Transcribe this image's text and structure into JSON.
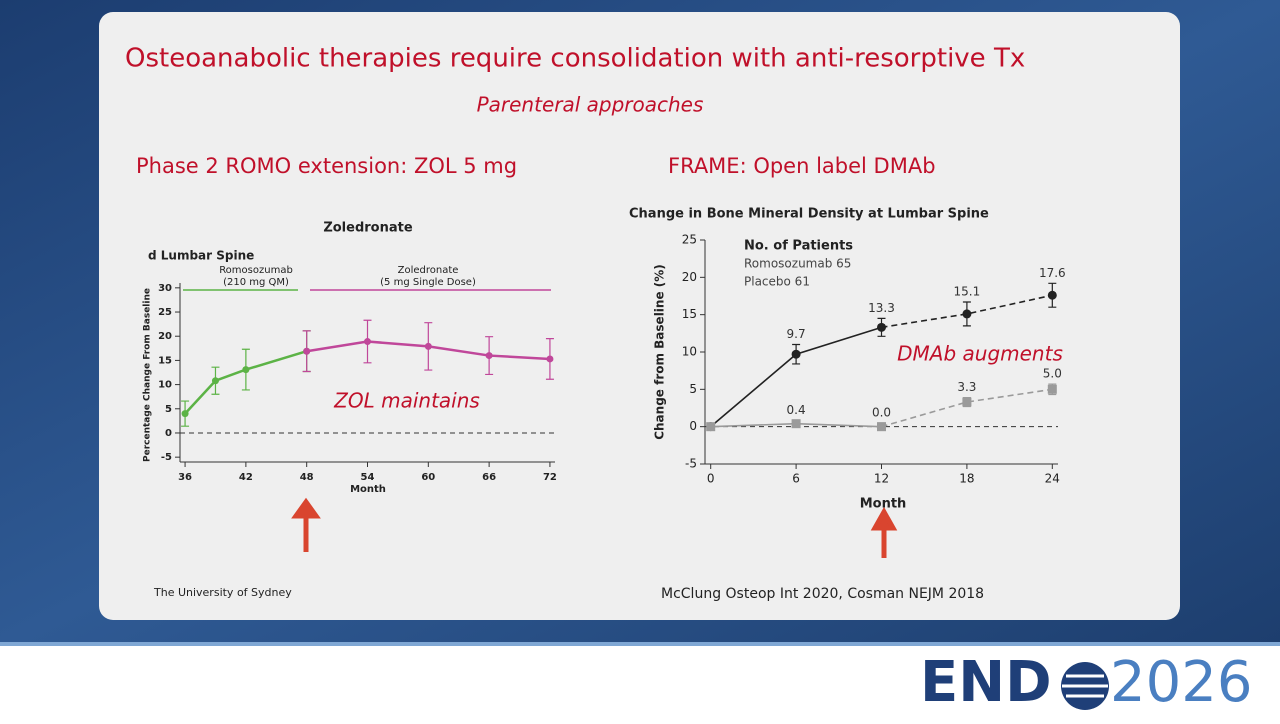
{
  "slide": {
    "title": "Osteoanabolic therapies require consolidation with anti-resorptive Tx",
    "subtitle": "Parenteral approaches",
    "left_heading": "Phase 2 ROMO extension: ZOL 5 mg",
    "right_heading": "FRAME: Open label DMAb",
    "footer_left": "The University of Sydney",
    "footer_right": "McClung Osteop Int 2020, Cosman NEJM 2018",
    "logo": {
      "left": "END",
      "right": "2026"
    }
  },
  "chart_data": [
    {
      "type": "line",
      "title": "Zoledronate",
      "subtitle": "d  Lumbar Spine",
      "x_label": "Month",
      "y_label": "Percentage Change From Baseline",
      "xlim": [
        35.5,
        72.5
      ],
      "xticks": [
        36,
        42,
        48,
        54,
        60,
        66,
        72
      ],
      "ylim": [
        -6,
        31
      ],
      "yticks": [
        -5,
        0,
        5,
        10,
        15,
        20,
        25,
        30
      ],
      "reference_line": 0,
      "series": [
        {
          "color": "#5cb346",
          "x": [
            36,
            39,
            42,
            48
          ],
          "values": [
            4,
            10.8,
            13.1,
            16.9
          ],
          "errors": [
            2.6,
            2.8,
            4.2,
            4.2
          ]
        },
        {
          "color": "#c0479a",
          "x": [
            48,
            54,
            60,
            66,
            72
          ],
          "values": [
            16.9,
            18.9,
            17.9,
            16,
            15.3
          ],
          "errors": [
            4.2,
            4.4,
            4.9,
            3.9,
            4.2
          ]
        }
      ],
      "annotations": [
        "Romosozumab",
        "(210 mg QM)",
        "Zoledronate",
        "(5 mg Single Dose)",
        "ZOL maintains"
      ]
    },
    {
      "type": "line",
      "title": "Change in Bone Mineral Density at Lumbar Spine",
      "x_label": "Month",
      "y_label": "Change from Baseline (%)",
      "xlim": [
        -0.4,
        24.4
      ],
      "xticks": [
        0,
        6,
        12,
        18,
        24
      ],
      "ylim": [
        -5,
        25
      ],
      "yticks": [
        -5,
        0,
        5,
        10,
        15,
        20,
        25
      ],
      "reference_line": 0,
      "dashed_after_x": 12,
      "series": [
        {
          "color": "#222222",
          "x": [
            0,
            6,
            12,
            18,
            24
          ],
          "values": [
            0,
            9.7,
            13.3,
            15.1,
            17.6
          ],
          "errors": [
            0,
            1.3,
            1.2,
            1.6,
            1.6
          ],
          "value_labels": [
            null,
            "9.7",
            "13.3",
            "15.1",
            "17.6"
          ]
        },
        {
          "color": "#9a9a9a",
          "x": [
            0,
            6,
            12,
            18,
            24
          ],
          "values": [
            0,
            0.4,
            0.0,
            3.3,
            5.0
          ],
          "errors": [
            0,
            0.4,
            0.5,
            0.6,
            0.7
          ],
          "value_labels": [
            null,
            "0.4",
            "0.0",
            "3.3",
            "5.0"
          ]
        }
      ],
      "annotations": [
        "No. of Patients",
        "Romosozumab 65",
        "Placebo 61",
        "DMAb augments"
      ]
    }
  ]
}
